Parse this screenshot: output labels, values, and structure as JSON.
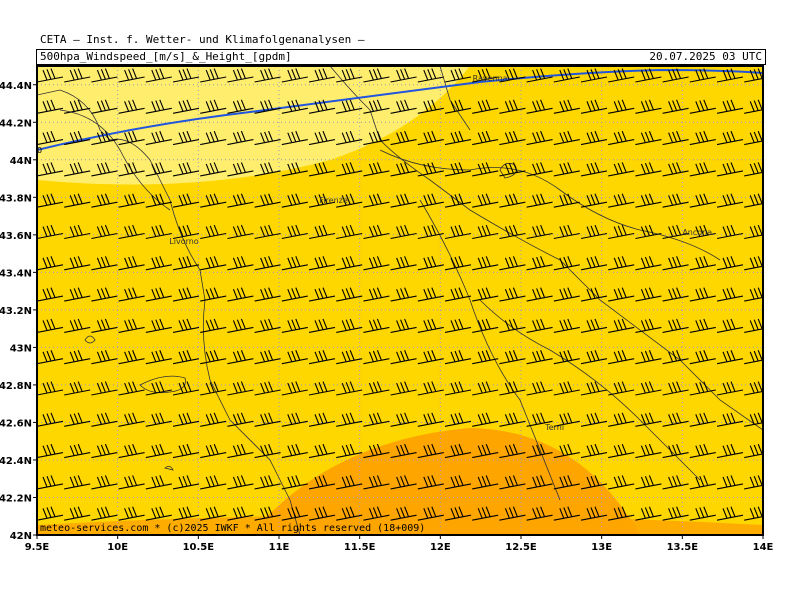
{
  "header": {
    "title": "CETA — Inst. f. Wetter- und Klimafolgenanalysen —",
    "subtitle": "500hpa_Windspeed_[m/s]_&_Height_[gpdm]",
    "valid_time": "20.07.2025 03 UTC"
  },
  "footer": {
    "credit": "meteo-services.com * (c)2025 IWKF * All rights reserved (18+009)"
  },
  "map": {
    "lon_range": [
      9.5,
      14.0
    ],
    "lat_range": [
      42.0,
      44.5
    ],
    "x_ticks": [
      "9.5E",
      "10E",
      "10.5E",
      "11E",
      "11.5E",
      "12E",
      "12.5E",
      "13E",
      "13.5E",
      "14E"
    ],
    "y_ticks": [
      "42N",
      "42.2N",
      "42.4N",
      "42.6N",
      "42.8N",
      "43N",
      "43.2N",
      "43.4N",
      "43.6N",
      "43.8N",
      "44N",
      "44.2N",
      "44.4N"
    ],
    "cities": [
      {
        "name": "Ravenna",
        "lon": 12.2,
        "lat": 44.42
      },
      {
        "name": "Firenze",
        "lon": 11.25,
        "lat": 43.77
      },
      {
        "name": "Livorno",
        "lon": 10.32,
        "lat": 43.55
      },
      {
        "name": "Ancona",
        "lon": 13.5,
        "lat": 43.6
      },
      {
        "name": "Terni",
        "lon": 12.65,
        "lat": 42.56
      }
    ],
    "contour_label": "0",
    "colors": {
      "light_band": "#FFEE6E",
      "mid_band": "#FFD700",
      "strong_band": "#FFA500",
      "contour": "#2255DD",
      "barb": "#000000",
      "coast": "#333333"
    },
    "grid_style": "dotted"
  }
}
